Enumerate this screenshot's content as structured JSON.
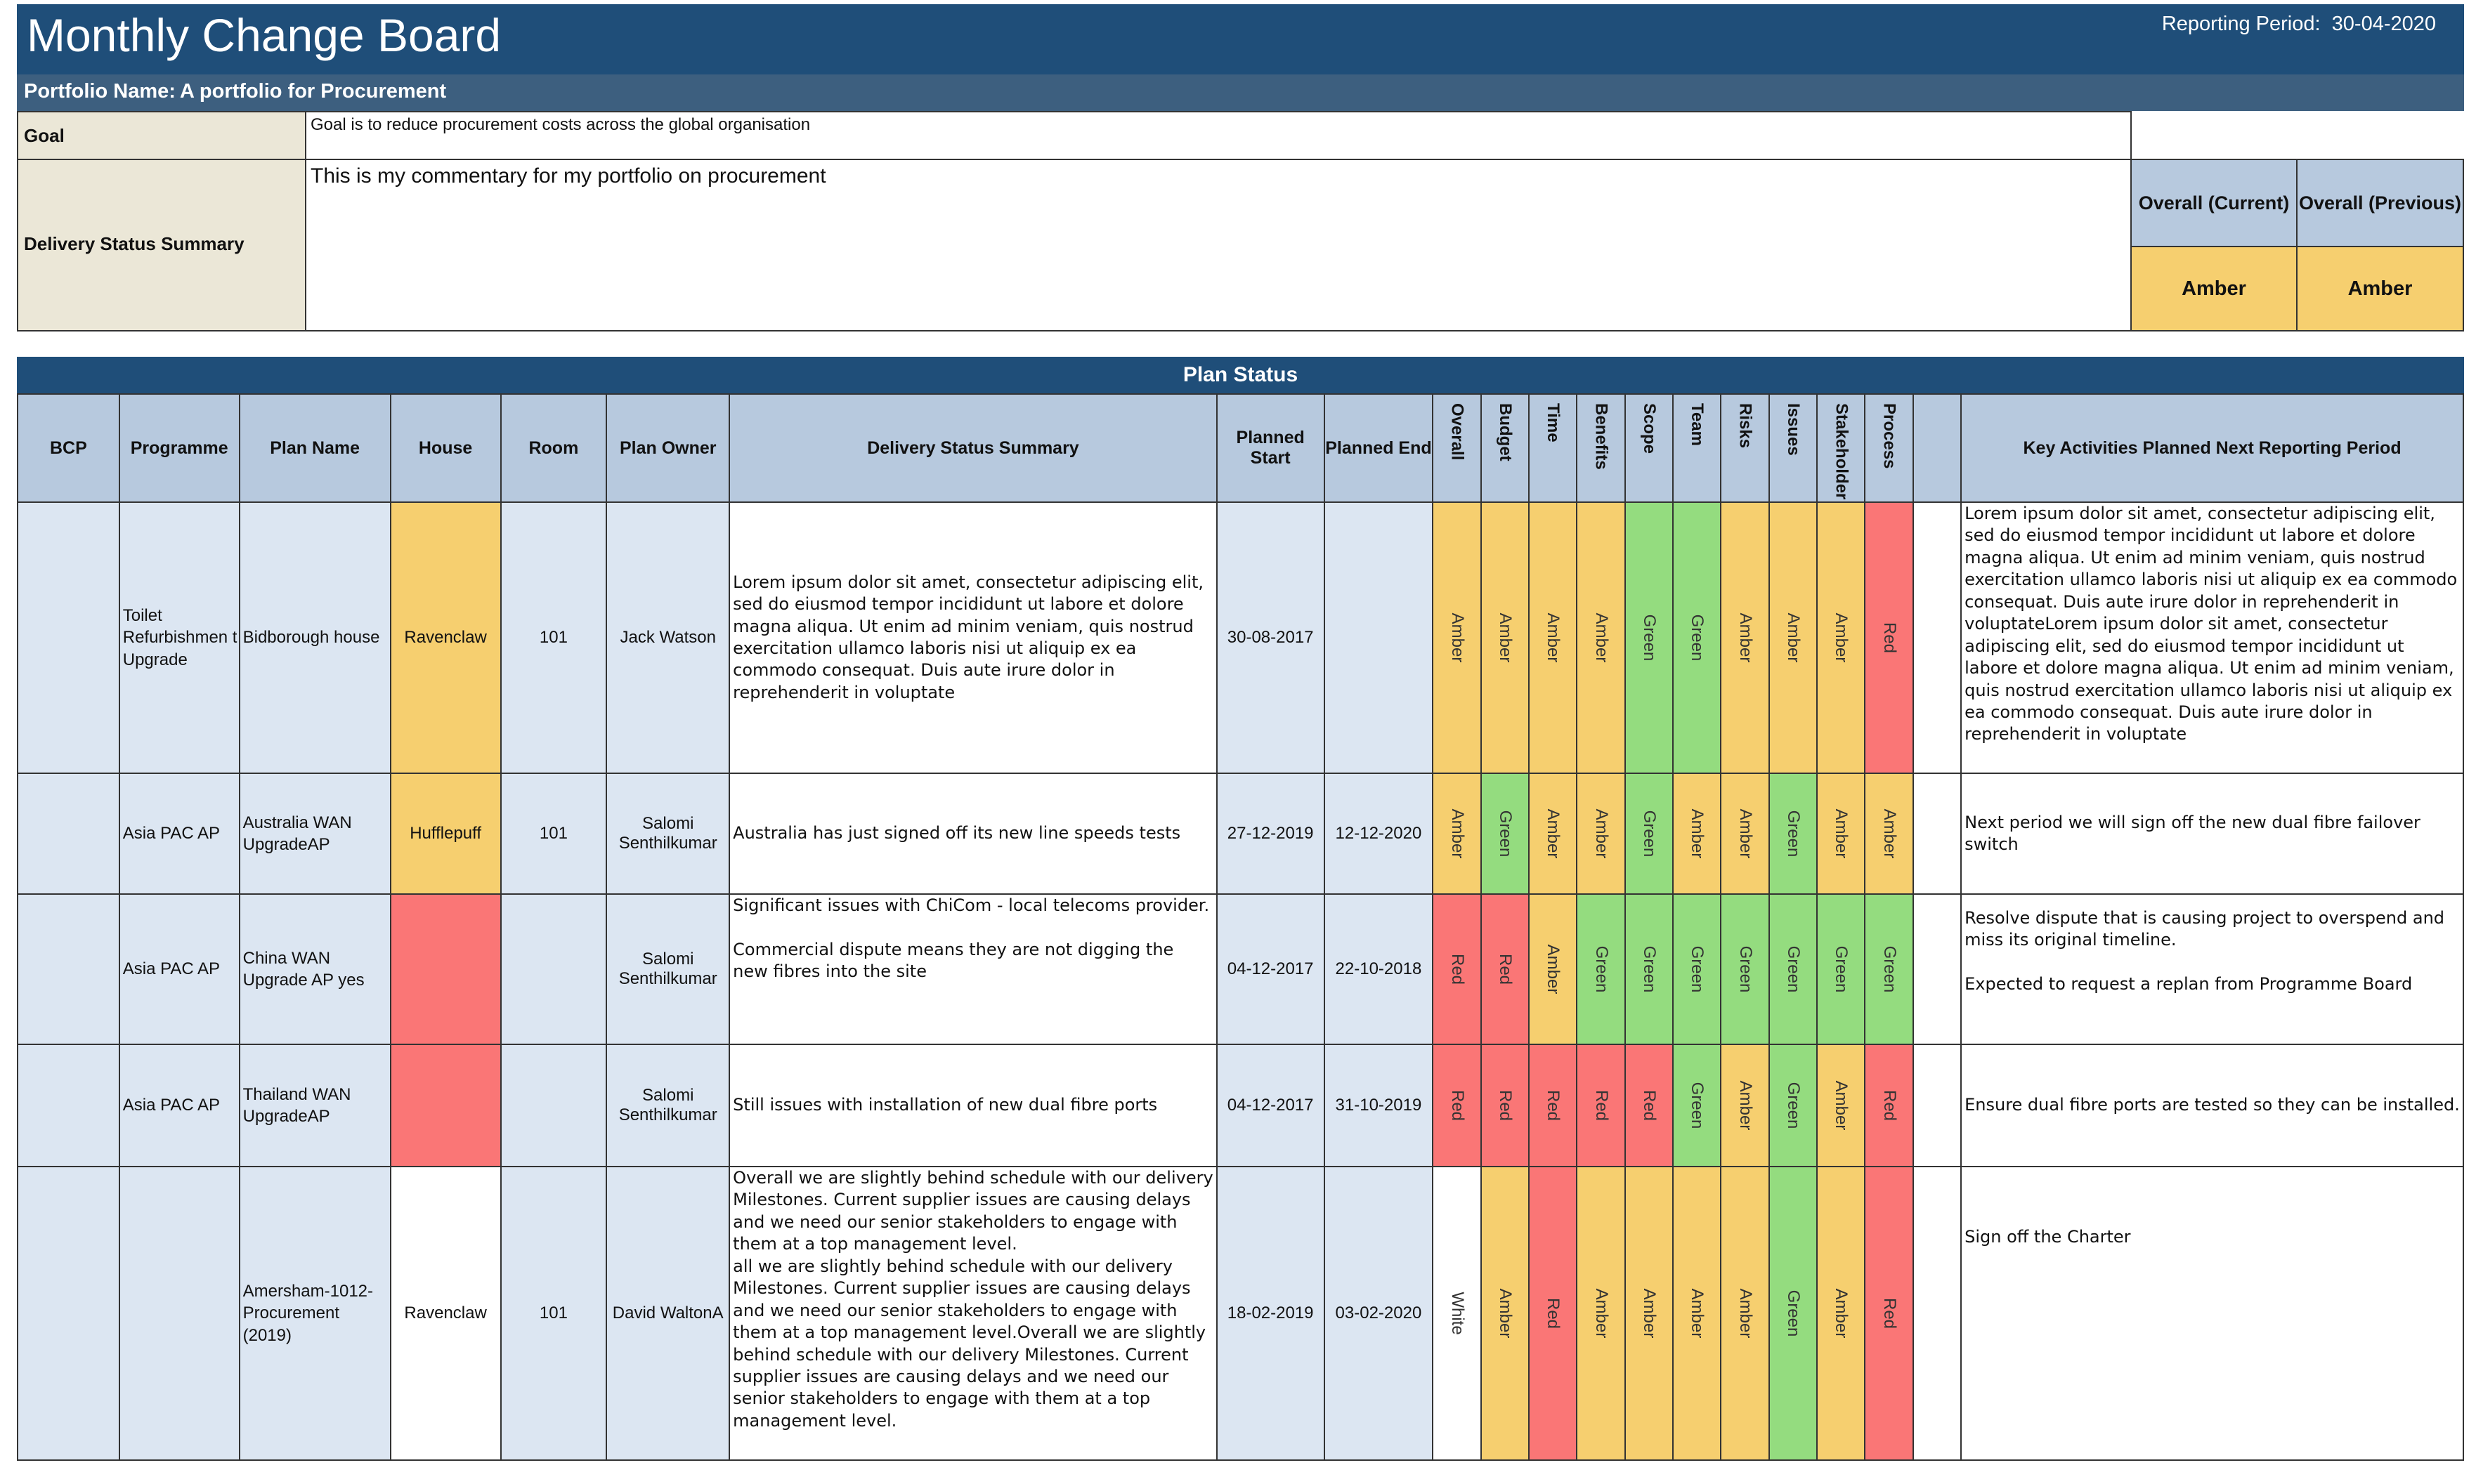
{
  "header": {
    "title": "Monthly Change Board",
    "reporting_period_label": "Reporting Period:",
    "reporting_period_value": "30-04-2020",
    "portfolio_label": "Portfolio Name:",
    "portfolio_value": "A portfolio for Procurement"
  },
  "summary": {
    "goal_label": "Goal",
    "goal_text": "Goal is to reduce procurement costs across the global organisation",
    "dss_label": "Delivery Status Summary",
    "dss_text": "This is my commentary for my portfolio on procurement",
    "overall_current_label": "Overall (Current)",
    "overall_previous_label": "Overall (Previous)",
    "overall_current_value": "Amber",
    "overall_previous_value": "Amber"
  },
  "colors": {
    "Amber": "#f6cf6f",
    "Green": "#94dc7f",
    "Red": "#fa7676",
    "White": "#ffffff",
    "header_blue": "#1f4e79",
    "column_header": "#b7c9de"
  },
  "plan_status": {
    "title": "Plan Status",
    "columns": {
      "bcp": "BCP",
      "programme": "Programme",
      "plan_name": "Plan Name",
      "house": "House",
      "room": "Room",
      "plan_owner": "Plan Owner",
      "delivery_status_summary": "Delivery Status Summary",
      "planned_start": "Planned Start",
      "planned_end": "Planned End",
      "rag": [
        "Overall",
        "Budget",
        "Time",
        "Benefits",
        "Scope",
        "Team",
        "Risks",
        "Issues",
        "Stakeholder",
        "Process"
      ],
      "key_activities": "Key Activities Planned Next Reporting Period"
    },
    "rows": [
      {
        "bcp": "",
        "programme": "Toilet Refurbishmen t Upgrade",
        "plan_name": "Bidborough house",
        "house": "Ravenclaw",
        "house_color": "Amber",
        "room": "101",
        "plan_owner": "Jack  Watson",
        "summary": "Lorem ipsum dolor sit amet, consectetur adipiscing elit, sed do eiusmod tempor incididunt ut labore et dolore magna aliqua. Ut enim ad minim veniam, quis nostrud exercitation ullamco laboris nisi ut aliquip ex ea commodo consequat. Duis aute irure dolor in reprehenderit in voluptate",
        "planned_start": "30-08-2017",
        "planned_end": "",
        "rag": [
          "Amber",
          "Amber",
          "Amber",
          "Amber",
          "Green",
          "Green",
          "Amber",
          "Amber",
          "Amber",
          "Red"
        ],
        "key_activities": "Lorem ipsum dolor sit amet, consectetur adipiscing elit, sed do eiusmod tempor incididunt ut labore et dolore magna aliqua. Ut enim ad minim veniam, quis nostrud exercitation ullamco laboris nisi ut aliquip ex ea commodo consequat. Duis aute irure dolor in reprehenderit in voluptateLorem ipsum dolor sit amet, consectetur adipiscing elit, sed do eiusmod tempor incididunt ut labore et dolore magna aliqua. Ut enim ad minim veniam, quis nostrud exercitation ullamco laboris nisi ut aliquip ex ea commodo consequat. Duis aute irure dolor in reprehenderit in voluptate"
      },
      {
        "bcp": "",
        "programme": "Asia PAC AP",
        "plan_name": "Australia WAN UpgradeAP",
        "house": "Hufflepuff",
        "house_color": "Amber",
        "room": "101",
        "plan_owner": "Salomi Senthilkumar",
        "summary": "Australia has just signed off its new line speeds tests",
        "planned_start": "27-12-2019",
        "planned_end": "12-12-2020",
        "rag": [
          "Amber",
          "Green",
          "Amber",
          "Amber",
          "Green",
          "Amber",
          "Amber",
          "Green",
          "Amber",
          "Amber"
        ],
        "key_activities": "Next period we will sign off the new dual fibre failover switch"
      },
      {
        "bcp": "",
        "programme": "Asia PAC AP",
        "plan_name": "China WAN Upgrade AP yes",
        "house": "",
        "house_color": "Red",
        "room": "",
        "plan_owner": "Salomi Senthilkumar",
        "summary": "Significant issues with ChiCom - local telecoms provider.\n\nCommercial dispute means they are not digging the new fibres into the site",
        "planned_start": "04-12-2017",
        "planned_end": "22-10-2018",
        "rag": [
          "Red",
          "Red",
          "Amber",
          "Green",
          "Green",
          "Green",
          "Green",
          "Green",
          "Green",
          "Green"
        ],
        "key_activities": "Resolve dispute that is causing project to overspend and miss its original timeline.\n\nExpected to request a replan from Programme Board"
      },
      {
        "bcp": "",
        "programme": "Asia PAC AP",
        "plan_name": "Thailand WAN UpgradeAP",
        "house": "",
        "house_color": "Red",
        "room": "",
        "plan_owner": "Salomi Senthilkumar",
        "summary": "Still issues with installation of new dual fibre ports",
        "planned_start": "04-12-2017",
        "planned_end": "31-10-2019",
        "rag": [
          "Red",
          "Red",
          "Red",
          "Red",
          "Red",
          "Green",
          "Amber",
          "Green",
          "Amber",
          "Red"
        ],
        "key_activities": "Ensure dual fibre ports are tested so they can be installed."
      },
      {
        "bcp": "",
        "programme": "",
        "plan_name": "Amersham-1012-Procurement (2019)",
        "house": "Ravenclaw",
        "house_color": "White",
        "room": "101",
        "plan_owner": "David WaltonA",
        "summary": "Overall we are slightly behind schedule with our delivery Milestones. Current supplier issues are causing delays and we need our senior stakeholders to engage with them at a top management level.\nall we are slightly behind schedule with our delivery Milestones. Current supplier issues are causing delays and we need our senior stakeholders to engage with them at a top management level.Overall we are slightly behind schedule with our delivery Milestones. Current supplier issues are causing delays and we need our senior stakeholders to engage with them at a top management level.",
        "planned_start": "18-02-2019",
        "planned_end": "03-02-2020",
        "rag": [
          "White",
          "Amber",
          "Red",
          "Amber",
          "Amber",
          "Amber",
          "Amber",
          "Green",
          "Amber",
          "Red"
        ],
        "key_activities": "Sign off the Charter"
      }
    ]
  }
}
